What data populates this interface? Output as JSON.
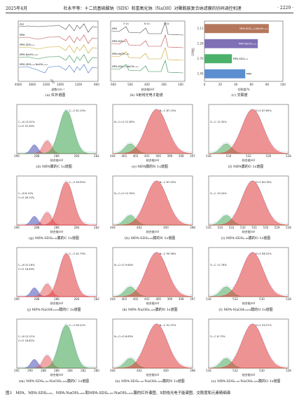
{
  "header": {
    "left": "2025年4月",
    "center": "杜永平等：十二烷基硫酸钠（SDS）和氢氧化钠（NaOH）对聚酰胺复合纳滤膜的协同调控机理",
    "right": "· 2229 ·"
  },
  "panel_a": {
    "caption": "(a) 红外谱图",
    "xlabel": "波数/cm⁻¹",
    "xticks": [
      "4000",
      "3600",
      "3200",
      "1600",
      "1200",
      "800"
    ],
    "labels": [
      "PSF",
      "MPA",
      "MPA-SDS₀.₀₅",
      "MPA-NaOH₀.₀₂₅",
      "MPA-SDS₀.₀₅-NaOH₀.₀₂₅"
    ]
  },
  "panel_b": {
    "caption": "(b) X射线光电子能谱",
    "xlabel": "结合能/eV",
    "xticks": [
      "600",
      "500",
      "400",
      "300",
      "200"
    ],
    "labels": [
      "O 1s",
      "N 1s",
      "C 1s",
      "MPA",
      "MPA-SDS₀.₀₅",
      "MPA-NaOH₀.₀₂₅",
      "MPA-SDS₀.₀₅-NaOH₀.₀₂₅"
    ]
  },
  "panel_c": {
    "caption": "(c) 交联度",
    "xlabel": "交联度/%",
    "ylabel": "O/N比",
    "chart_data": {
      "type": "bar",
      "categories": [
        "MPA",
        "MPA-SDS₀.₀₅",
        "MPA-NaOH₀.₀₂₅",
        "MPA-SDS₀.₀₅-NaOH₀.₀₂₅"
      ],
      "ratio_labels": [
        "1.45",
        "1.70",
        "1.29",
        "1.11"
      ],
      "values": [
        52,
        35,
        68,
        82
      ],
      "xlim": [
        0,
        100
      ],
      "xticks": [
        "0",
        "20",
        "40",
        "60",
        "80",
        "100"
      ],
      "colors": [
        "#5b8fd1",
        "#4bb069",
        "#7f6fb5",
        "#b5775c"
      ]
    }
  },
  "xps_panels": [
    {
      "caption": "(d) MPA膜的C 1s谱图",
      "peaks": [
        "C—C 61.19%",
        "C—N 13.51%",
        "C=O 25.30%"
      ],
      "xticks": [
        "290",
        "288",
        "286",
        "284",
        "282"
      ],
      "color": "#3aa24a"
    },
    {
      "caption": "(e) MPA膜的N 1s谱图",
      "peaks": [
        "N—C 87.15%",
        "N—C=O 12.85%"
      ],
      "xticks": [
        "404",
        "403",
        "402",
        "401",
        "400",
        "399",
        "398",
        "397"
      ],
      "color": "#e03b3b"
    },
    {
      "caption": "(f) MPA膜的O 1s谱图",
      "peaks": [
        "O=C 87.65%",
        "O—C 12.35%"
      ],
      "xticks": [
        "536",
        "534",
        "532",
        "530",
        "528"
      ],
      "color": "#e03b3b"
    },
    {
      "caption": "(g) MPA-SDS₀.₀₅膜的C 1s谱图",
      "peaks": [
        "C—C 63.95%",
        "C—N 6.15%",
        "C=O 26.10%"
      ],
      "xticks": [
        "290",
        "288",
        "286",
        "284",
        "282"
      ],
      "color": "#e03b3b"
    },
    {
      "caption": "(h) MPA-SDS₀.₀₅膜的N 1s谱图",
      "peaks": [
        "N—C 87.05%",
        "N—C=O 12.95%"
      ],
      "xticks": [
        "404",
        "402",
        "400",
        "398"
      ],
      "color": "#e03b3b"
    },
    {
      "caption": "(i) MPA-SDS₀.₀₅膜的O 1s谱图",
      "peaks": [
        "O=C 80.76%",
        "O—C 19.24%"
      ],
      "xticks": [
        "535",
        "534",
        "533",
        "532",
        "531",
        "530",
        "529",
        "528"
      ],
      "color": "#e03b3b"
    },
    {
      "caption": "(j) MPA-NaOH₀.₀₂₅膜的C 1s谱图",
      "peaks": [
        "C—C 61.79%",
        "C—N 15.16%",
        "C=O 16.63%"
      ],
      "xticks": [
        "290",
        "288",
        "286",
        "284",
        "282"
      ],
      "color": "#e03b3b"
    },
    {
      "caption": "(k) MPA-NaOH₀.₀₂₅膜的N 1s谱图",
      "peaks": [
        "N—C 90.36%",
        "N—C=O 9.64%"
      ],
      "xticks": [
        "404",
        "403",
        "402",
        "401",
        "400",
        "399",
        "398",
        "397"
      ],
      "color": "#e03b3b"
    },
    {
      "caption": "(l) MPA-NaOH₀.₀₂₅膜的O 1s谱图",
      "peaks": [
        "O=C 88.22%",
        "O—C 11.78%"
      ],
      "xticks": [
        "534",
        "532",
        "530",
        "528"
      ],
      "color": "#e03b3b"
    },
    {
      "caption": "(m) MPA-SDS₀.₀₅-NaOH₀.₀₂₅膜的C 1s谱图",
      "peaks": [
        "C—C 65.22%",
        "C—N 12.21%",
        "C=O 18.82%"
      ],
      "xticks": [
        "292",
        "290",
        "288",
        "286",
        "284",
        "282",
        "280"
      ],
      "color": "#3aa24a"
    },
    {
      "caption": "(n) MPA-SDS₀.₀₅-NaOH₀.₀₂₅膜的N 1s谱图",
      "peaks": [
        "N—C 91.37%",
        "N—C=O 8.63%"
      ],
      "xticks": [
        "404",
        "402",
        "400",
        "398"
      ],
      "color": "#e03b3b"
    },
    {
      "caption": "(o) MPA-SDS₀.₀₅-NaOH₀.₀₂₅膜的O 1s谱图",
      "peaks": [
        "O=C 93.27%",
        "O—C 6.73%"
      ],
      "xticks": [
        "534",
        "532",
        "530",
        "528"
      ],
      "color": "#e03b3b"
    }
  ],
  "xps_xlabel": "结合能/eV",
  "figure_caption": "图3　MPA、MPA-SDS₀.₀₅、MPA-NaOH₀.₀₂₅和MPA-SDS₀.₀₅-NaOH₀.₀₂₅膜的红外谱图、X射线光电子能谱图、交联度和元素精细谱"
}
